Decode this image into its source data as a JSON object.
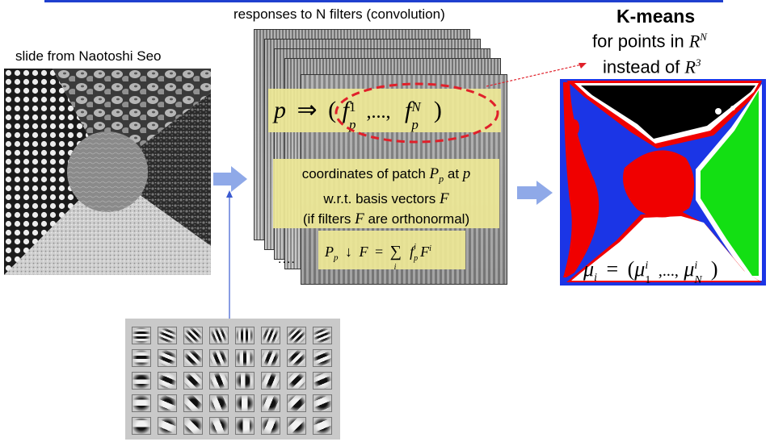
{
  "labels": {
    "slide_credit": "slide from Naotoshi Seo",
    "responses_title": "responses to N filters (convolution)",
    "kmeans_title": "K-means",
    "kmeans_line2_text": "for points in ",
    "kmeans_line2_var": "R",
    "kmeans_line2_exp": "N",
    "kmeans_line3_text": "instead of ",
    "kmeans_line3_var": "R",
    "kmeans_line3_exp": "3",
    "ellipsis": "...."
  },
  "equations": {
    "p_map": {
      "p": "p",
      "arrow": "⇒",
      "open": "(",
      "f1": "f",
      "f1_sub": "p",
      "f1_sup": "1",
      "sep": ",...,",
      "fN": "f",
      "fN_sub": "p",
      "fN_sup": "N",
      "close": ")"
    },
    "coords_line1_a": "coordinates of patch ",
    "coords_line1_P": "P",
    "coords_line1_Psub": "p",
    "coords_line1_b": " at ",
    "coords_line1_p": "p",
    "coords_line2_a": "w.r.t. basis vectors ",
    "coords_line2_F": "F",
    "coords_line3_a": "(if filters ",
    "coords_line3_F": "F",
    "coords_line3_b": " are orthonormal)",
    "projection": {
      "P": "P",
      "Psub": "p",
      "op": "↓",
      "F": "F",
      "eq": "=",
      "sum": "∑",
      "sum_sub": "i",
      "f": "f",
      "f_sub": "p",
      "f_sup": "i",
      "F2": "F",
      "F2_sup": "i"
    },
    "mu": {
      "mu": "μ",
      "mu_sub": "i",
      "eq": "=",
      "open": "(",
      "mu1": "μ",
      "mu1_sub": "1",
      "mu1_sup": "i",
      "sep": ",...,",
      "muN": "μ",
      "muN_sub": "N",
      "muN_sup": "i",
      "close": ")"
    }
  },
  "colors": {
    "arrow_fill": "#8fa9e8",
    "highlight": "#eee896",
    "ellipse": "#e0202a",
    "cluster_blue": "#1b35e6",
    "cluster_green": "#13df13",
    "cluster_red": "#f00000",
    "cluster_black": "#000000",
    "cluster_white": "#ffffff"
  },
  "filter_bank": {
    "rows": 5,
    "cols": 8
  }
}
